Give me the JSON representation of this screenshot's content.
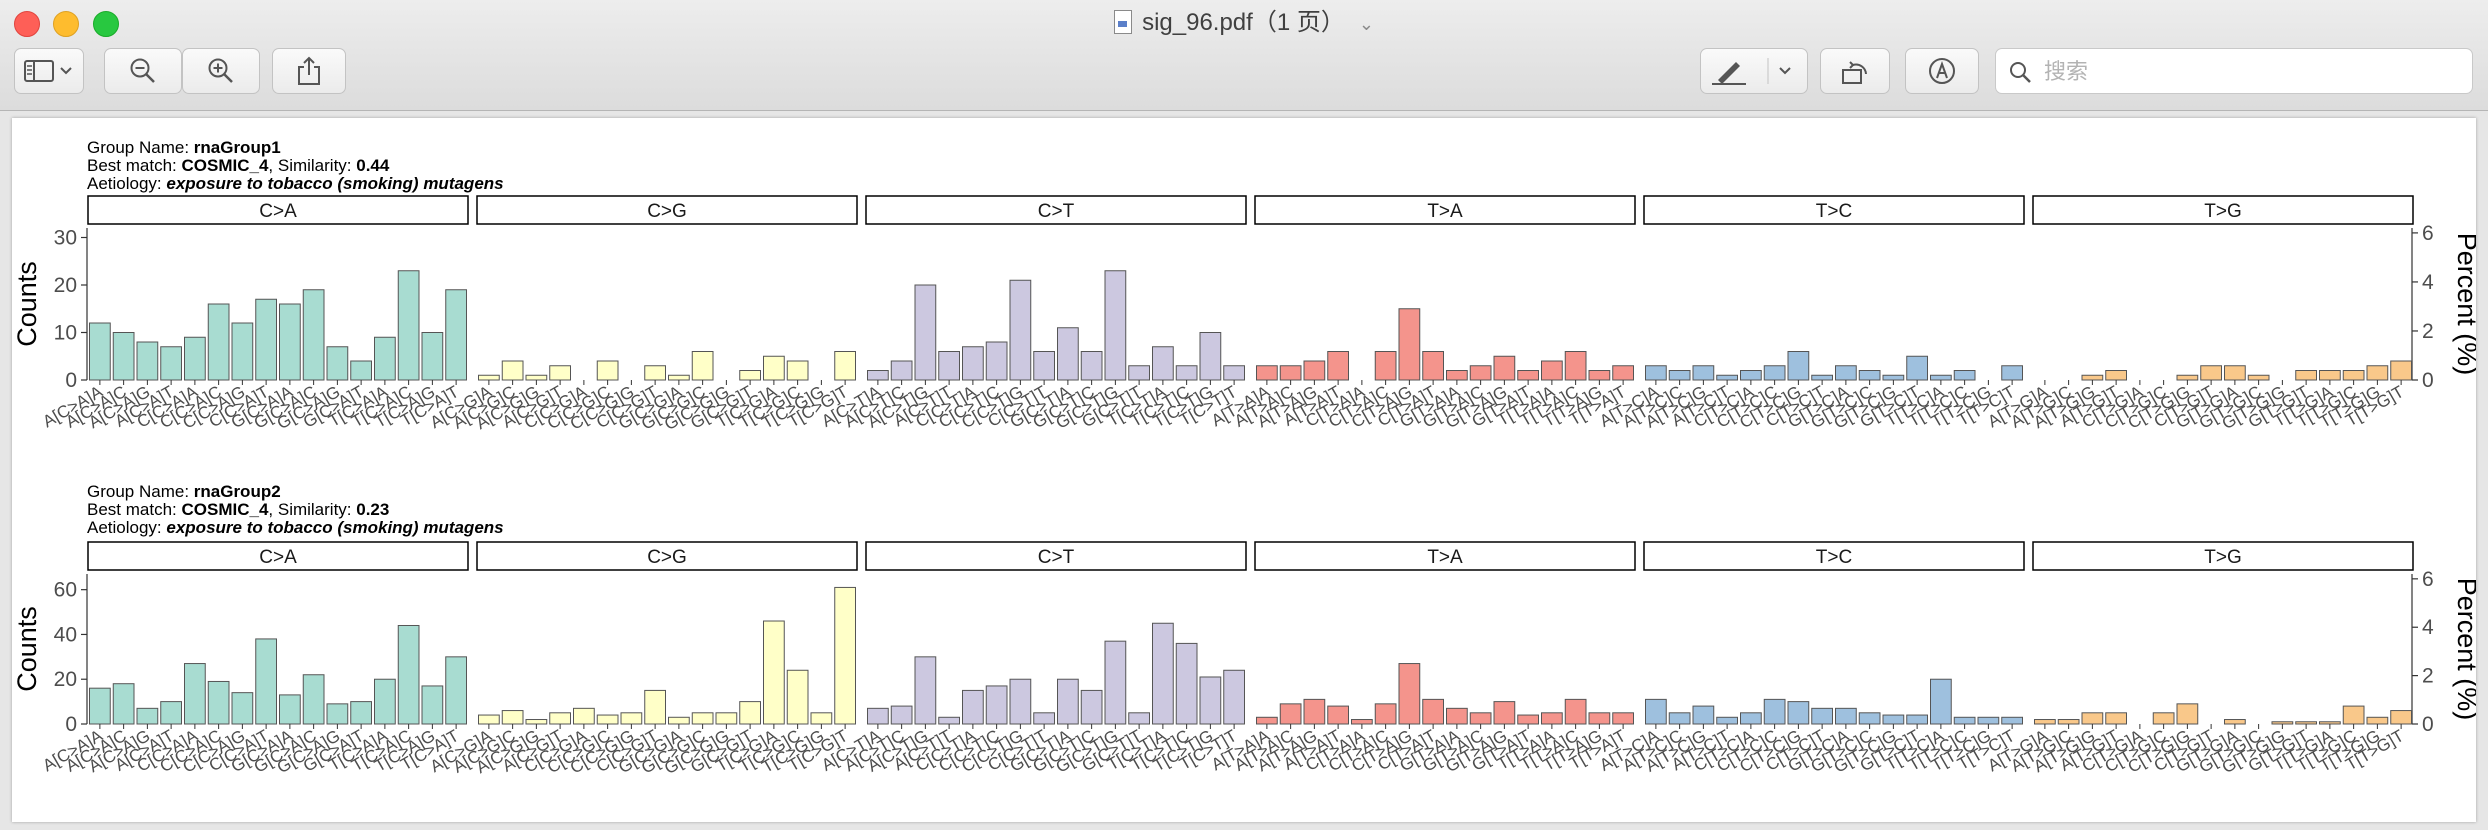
{
  "window": {
    "title": "sig_96.pdf（1 页）"
  },
  "toolbar": {
    "search_placeholder": "搜索"
  },
  "icons": {
    "sidebar": "sidebar-icon",
    "zoom_out": "zoom-out-icon",
    "zoom_in": "zoom-in-icon",
    "share": "share-icon",
    "markup": "markup-pen-icon",
    "rotate": "rotate-icon",
    "annotate": "annotate-icon",
    "search": "search-icon"
  },
  "colors": {
    "C>A": "#a8dcd1",
    "C>G": "#ffffc8",
    "C>T": "#ccc8e0",
    "T>A": "#f4948c",
    "T>C": "#9ec0de",
    "T>G": "#f9c88a"
  },
  "chart_data": {
    "type": "bar",
    "categories": [
      "A[C>A]A",
      "A[C>A]C",
      "A[C>A]G",
      "A[C>A]T",
      "C[C>A]A",
      "C[C>A]C",
      "C[C>A]G",
      "C[C>A]T",
      "G[C>A]A",
      "G[C>A]C",
      "G[C>A]G",
      "G[C>A]T",
      "T[C>A]A",
      "T[C>A]C",
      "T[C>A]G",
      "T[C>A]T",
      "A[C>G]A",
      "A[C>G]C",
      "A[C>G]G",
      "A[C>G]T",
      "C[C>G]A",
      "C[C>G]C",
      "C[C>G]G",
      "C[C>G]T",
      "G[C>G]A",
      "G[C>G]C",
      "G[C>G]G",
      "G[C>G]T",
      "T[C>G]A",
      "T[C>G]C",
      "T[C>G]G",
      "T[C>G]T",
      "A[C>T]A",
      "A[C>T]C",
      "A[C>T]G",
      "A[C>T]T",
      "C[C>T]A",
      "C[C>T]C",
      "C[C>T]G",
      "C[C>T]T",
      "G[C>T]A",
      "G[C>T]C",
      "G[C>T]G",
      "G[C>T]T",
      "T[C>T]A",
      "T[C>T]C",
      "T[C>T]G",
      "T[C>T]T",
      "A[T>A]A",
      "A[T>A]C",
      "A[T>A]G",
      "A[T>A]T",
      "C[T>A]A",
      "C[T>A]C",
      "C[T>A]G",
      "C[T>A]T",
      "G[T>A]A",
      "G[T>A]C",
      "G[T>A]G",
      "G[T>A]T",
      "T[T>A]A",
      "T[T>A]C",
      "T[T>A]G",
      "T[T>A]T",
      "A[T>C]A",
      "A[T>C]C",
      "A[T>C]G",
      "A[T>C]T",
      "C[T>C]A",
      "C[T>C]C",
      "C[T>C]G",
      "C[T>C]T",
      "G[T>C]A",
      "G[T>C]C",
      "G[T>C]G",
      "G[T>C]T",
      "T[T>C]A",
      "T[T>C]C",
      "T[T>C]G",
      "T[T>C]T",
      "A[T>G]A",
      "A[T>G]C",
      "A[T>G]G",
      "A[T>G]T",
      "C[T>G]A",
      "C[T>G]C",
      "C[T>G]G",
      "C[T>G]T",
      "G[T>G]A",
      "G[T>G]C",
      "G[T>G]G",
      "G[T>G]T",
      "T[T>G]A",
      "T[T>G]C",
      "T[T>G]G",
      "T[T>G]T"
    ],
    "groups": [
      "C>A",
      "C>G",
      "C>T",
      "T>A",
      "T>C",
      "T>G"
    ],
    "panels": [
      {
        "group_label": "Group Name: ",
        "group_name": "rnaGroup1",
        "match_label": "Best match: ",
        "match_name": "COSMIC_4",
        "similarity_label": ", Similarity: ",
        "similarity": "0.44",
        "aetiology_label": "Aetiology: ",
        "aetiology": "exposure to tobacco (smoking) mutagens",
        "ylabel": "Counts",
        "y2label": "Percent (%)",
        "ylim": [
          0,
          32
        ],
        "yticks": [
          0,
          10,
          20,
          30
        ],
        "y2lim": [
          0,
          6.2
        ],
        "y2ticks": [
          0,
          2,
          4,
          6
        ],
        "values": [
          12,
          10,
          8,
          7,
          9,
          16,
          12,
          17,
          16,
          19,
          7,
          4,
          9,
          23,
          10,
          19,
          1,
          4,
          1,
          3,
          0,
          4,
          0,
          3,
          1,
          6,
          0,
          2,
          5,
          4,
          0,
          6,
          2,
          4,
          20,
          6,
          7,
          8,
          21,
          6,
          11,
          6,
          23,
          3,
          7,
          3,
          10,
          3,
          3,
          3,
          4,
          6,
          0,
          6,
          15,
          6,
          2,
          3,
          5,
          2,
          4,
          6,
          2,
          3,
          3,
          2,
          3,
          1,
          2,
          3,
          6,
          1,
          3,
          2,
          1,
          5,
          1,
          2,
          0,
          3,
          0,
          0,
          1,
          2,
          0,
          0,
          1,
          3,
          3,
          1,
          0,
          2,
          2,
          2,
          3,
          4
        ]
      },
      {
        "group_label": "Group Name: ",
        "group_name": "rnaGroup2",
        "match_label": "Best match: ",
        "match_name": "COSMIC_4",
        "similarity_label": ", Similarity: ",
        "similarity": "0.23",
        "aetiology_label": "Aetiology: ",
        "aetiology": "exposure to tobacco (smoking) mutagens",
        "ylabel": "Counts",
        "y2label": "Percent (%)",
        "ylim": [
          0,
          67
        ],
        "yticks": [
          0,
          20,
          40,
          60
        ],
        "y2lim": [
          0,
          6.2
        ],
        "y2ticks": [
          0,
          2,
          4,
          6
        ],
        "values": [
          16,
          18,
          7,
          10,
          27,
          19,
          14,
          38,
          13,
          22,
          9,
          10,
          20,
          44,
          17,
          30,
          4,
          6,
          2,
          5,
          7,
          4,
          5,
          15,
          3,
          5,
          5,
          10,
          46,
          24,
          5,
          61,
          7,
          8,
          30,
          3,
          15,
          17,
          20,
          5,
          20,
          15,
          37,
          5,
          45,
          36,
          21,
          24,
          3,
          9,
          11,
          8,
          2,
          9,
          27,
          11,
          7,
          5,
          10,
          4,
          5,
          11,
          5,
          5,
          11,
          5,
          8,
          3,
          5,
          11,
          10,
          7,
          7,
          5,
          4,
          4,
          20,
          3,
          3,
          3,
          2,
          2,
          5,
          5,
          0,
          5,
          9,
          0,
          2,
          0,
          1,
          1,
          1,
          8,
          3,
          6
        ]
      }
    ]
  }
}
